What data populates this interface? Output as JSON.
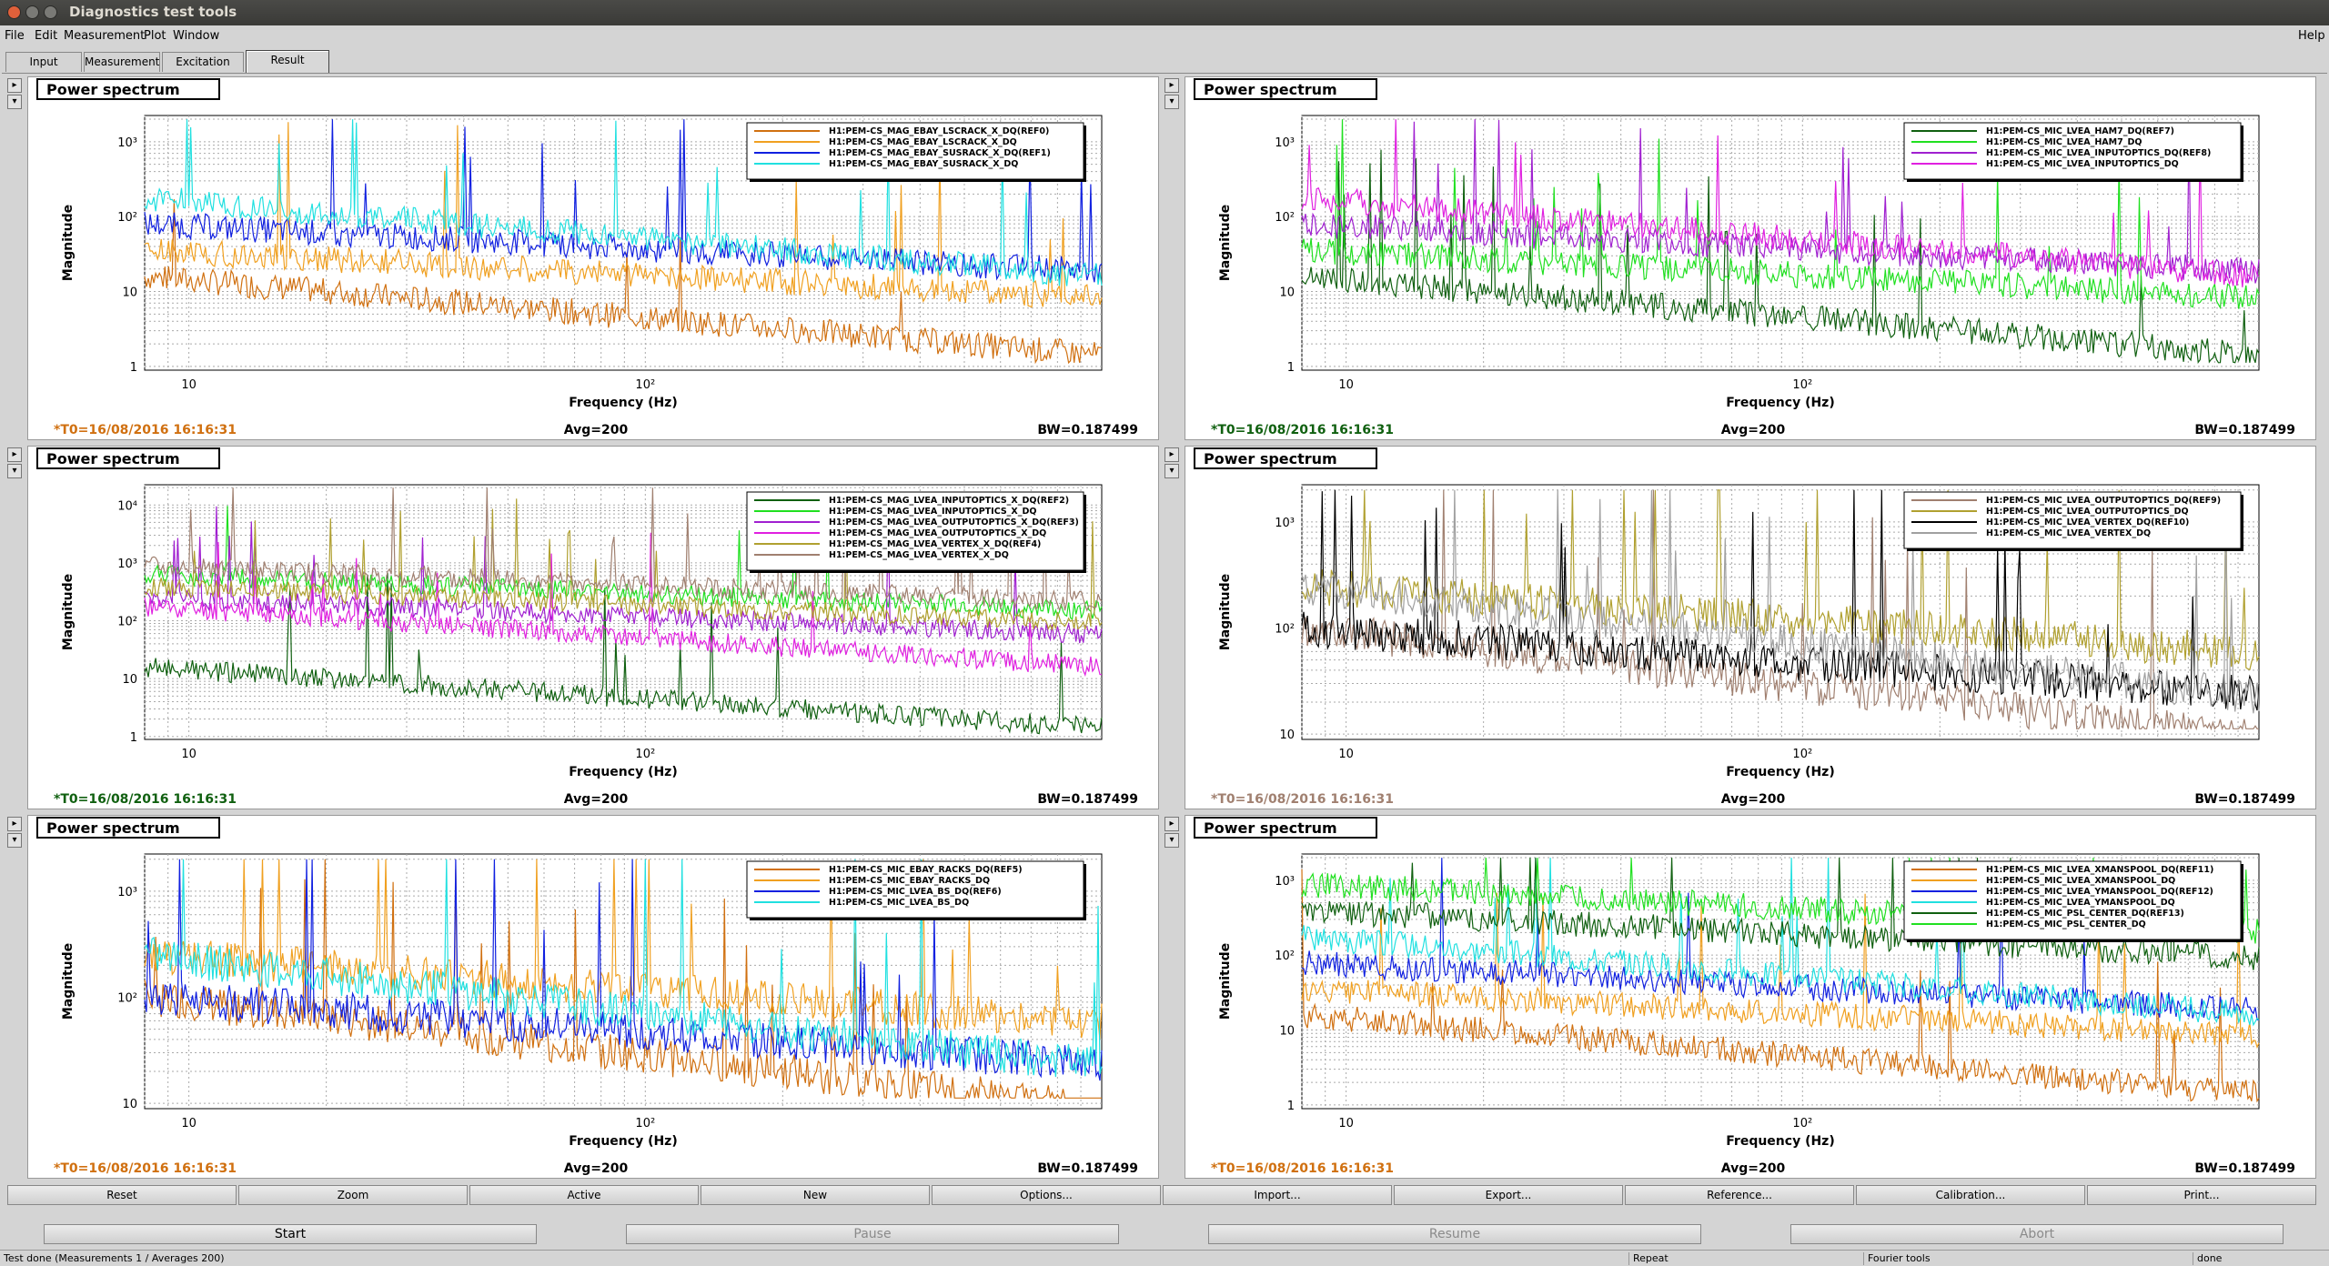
{
  "window": {
    "title": "Diagnostics test tools"
  },
  "menu": {
    "items": [
      {
        "label": "File",
        "x": 5
      },
      {
        "label": "Edit",
        "x": 38
      },
      {
        "label": "Measurement",
        "x": 70
      },
      {
        "label": "Plot",
        "x": 158
      },
      {
        "label": "Window",
        "x": 190
      }
    ],
    "help": "Help"
  },
  "tabs": [
    "Input",
    "Measurement",
    "Excitation",
    "Result"
  ],
  "colors": {
    "orange": "#d07010",
    "light_orange": "#f0a020",
    "blue": "#1020e0",
    "cyan": "#20e0e0",
    "dark_green": "#106010",
    "green": "#20e020",
    "magenta": "#e020e0",
    "purple": "#a020d0",
    "olive": "#b0a030",
    "brown": "#a08070",
    "black": "#000000"
  },
  "panels": [
    {
      "title": "Power spectrum",
      "xlabel": "Frequency (Hz)",
      "ylabel": "Magnitude",
      "t0": "*T0=16/08/2016 16:16:31",
      "t0_color": "#d07010",
      "avg": "Avg=200",
      "bw": "BW=0.187499",
      "yticks": [
        "1",
        "10",
        "10²",
        "10³"
      ],
      "legend": [
        {
          "name": "H1:PEM-CS_MAG_EBAY_LSCRACK_X_DQ(REF0)",
          "color": "#d07010"
        },
        {
          "name": "H1:PEM-CS_MAG_EBAY_LSCRACK_X_DQ",
          "color": "#f0a020"
        },
        {
          "name": "H1:PEM-CS_MAG_EBAY_SUSRACK_X_DQ(REF1)",
          "color": "#1020e0"
        },
        {
          "name": "H1:PEM-CS_MAG_EBAY_SUSRACK_X_DQ",
          "color": "#20e0e0"
        }
      ]
    },
    {
      "title": "Power spectrum",
      "xlabel": "Frequency (Hz)",
      "ylabel": "Magnitude",
      "t0": "*T0=16/08/2016 16:16:31",
      "t0_color": "#106010",
      "avg": "Avg=200",
      "bw": "BW=0.187499",
      "yticks": [
        "1",
        "10",
        "10²",
        "10³"
      ],
      "legend": [
        {
          "name": "H1:PEM-CS_MIC_LVEA_HAM7_DQ(REF7)",
          "color": "#106010"
        },
        {
          "name": "H1:PEM-CS_MIC_LVEA_HAM7_DQ",
          "color": "#20e020"
        },
        {
          "name": "H1:PEM-CS_MIC_LVEA_INPUTOPTICS_DQ(REF8)",
          "color": "#a020d0"
        },
        {
          "name": "H1:PEM-CS_MIC_LVEA_INPUTOPTICS_DQ",
          "color": "#e020e0"
        }
      ]
    },
    {
      "title": "Power spectrum",
      "xlabel": "Frequency (Hz)",
      "ylabel": "Magnitude",
      "t0": "*T0=16/08/2016 16:16:31",
      "t0_color": "#106010",
      "avg": "Avg=200",
      "bw": "BW=0.187499",
      "yticks": [
        "1",
        "10",
        "10²",
        "10³",
        "10⁴"
      ],
      "legend": [
        {
          "name": "H1:PEM-CS_MAG_LVEA_INPUTOPTICS_X_DQ(REF2)",
          "color": "#106010"
        },
        {
          "name": "H1:PEM-CS_MAG_LVEA_INPUTOPTICS_X_DQ",
          "color": "#20e020"
        },
        {
          "name": "H1:PEM-CS_MAG_LVEA_OUTPUTOPTICS_X_DQ(REF3)",
          "color": "#a020d0"
        },
        {
          "name": "H1:PEM-CS_MAG_LVEA_OUTPUTOPTICS_X_DQ",
          "color": "#e020e0"
        },
        {
          "name": "H1:PEM-CS_MAG_LVEA_VERTEX_X_DQ(REF4)",
          "color": "#b0a030"
        },
        {
          "name": "H1:PEM-CS_MAG_LVEA_VERTEX_X_DQ",
          "color": "#a08070"
        }
      ]
    },
    {
      "title": "Power spectrum",
      "xlabel": "Frequency (Hz)",
      "ylabel": "Magnitude",
      "t0": "*T0=16/08/2016 16:16:31",
      "t0_color": "#a08070",
      "avg": "Avg=200",
      "bw": "BW=0.187499",
      "yticks": [
        "10",
        "10²",
        "10³"
      ],
      "legend": [
        {
          "name": "H1:PEM-CS_MIC_LVEA_OUTPUTOPTICS_DQ(REF9)",
          "color": "#a08070"
        },
        {
          "name": "H1:PEM-CS_MIC_LVEA_OUTPUTOPTICS_DQ",
          "color": "#b0a030"
        },
        {
          "name": "H1:PEM-CS_MIC_LVEA_VERTEX_DQ(REF10)",
          "color": "#000000"
        },
        {
          "name": "H1:PEM-CS_MIC_LVEA_VERTEX_DQ",
          "color": "#a0a0a0"
        }
      ]
    },
    {
      "title": "Power spectrum",
      "xlabel": "Frequency (Hz)",
      "ylabel": "Magnitude",
      "t0": "*T0=16/08/2016 16:16:31",
      "t0_color": "#d07010",
      "avg": "Avg=200",
      "bw": "BW=0.187499",
      "yticks": [
        "10",
        "10²",
        "10³"
      ],
      "legend": [
        {
          "name": "H1:PEM-CS_MIC_EBAY_RACKS_DQ(REF5)",
          "color": "#d07010"
        },
        {
          "name": "H1:PEM-CS_MIC_EBAY_RACKS_DQ",
          "color": "#f0a020"
        },
        {
          "name": "H1:PEM-CS_MIC_LVEA_BS_DQ(REF6)",
          "color": "#1020e0"
        },
        {
          "name": "H1:PEM-CS_MIC_LVEA_BS_DQ",
          "color": "#20e0e0"
        }
      ]
    },
    {
      "title": "Power spectrum",
      "xlabel": "Frequency (Hz)",
      "ylabel": "Magnitude",
      "t0": "*T0=16/08/2016 16:16:31",
      "t0_color": "#d07010",
      "avg": "Avg=200",
      "bw": "BW=0.187499",
      "yticks": [
        "1",
        "10",
        "10²",
        "10³"
      ],
      "legend": [
        {
          "name": "H1:PEM-CS_MIC_LVEA_XMANSPOOL_DQ(REF11)",
          "color": "#d07010"
        },
        {
          "name": "H1:PEM-CS_MIC_LVEA_XMANSPOOL_DQ",
          "color": "#f0a020"
        },
        {
          "name": "H1:PEM-CS_MIC_LVEA_YMANSPOOL_DQ(REF12)",
          "color": "#1020e0"
        },
        {
          "name": "H1:PEM-CS_MIC_LVEA_YMANSPOOL_DQ",
          "color": "#20e0e0"
        },
        {
          "name": "H1:PEM-CS_MIC_PSL_CENTER_DQ(REF13)",
          "color": "#106010"
        },
        {
          "name": "H1:PEM-CS_MIC_PSL_CENTER_DQ",
          "color": "#20e020"
        }
      ]
    }
  ],
  "xticks": [
    "10",
    "10²"
  ],
  "toolbar": [
    "Reset",
    "Zoom",
    "Active",
    "New",
    "Options...",
    "Import...",
    "Export...",
    "Reference...",
    "Calibration...",
    "Print..."
  ],
  "actions": {
    "start": "Start",
    "pause": "Pause",
    "resume": "Resume",
    "abort": "Abort"
  },
  "status": {
    "message": "Test done (Measurements 1 / Averages 200)",
    "repeat": "Repeat",
    "tools": "Fourier tools",
    "state": "done"
  }
}
